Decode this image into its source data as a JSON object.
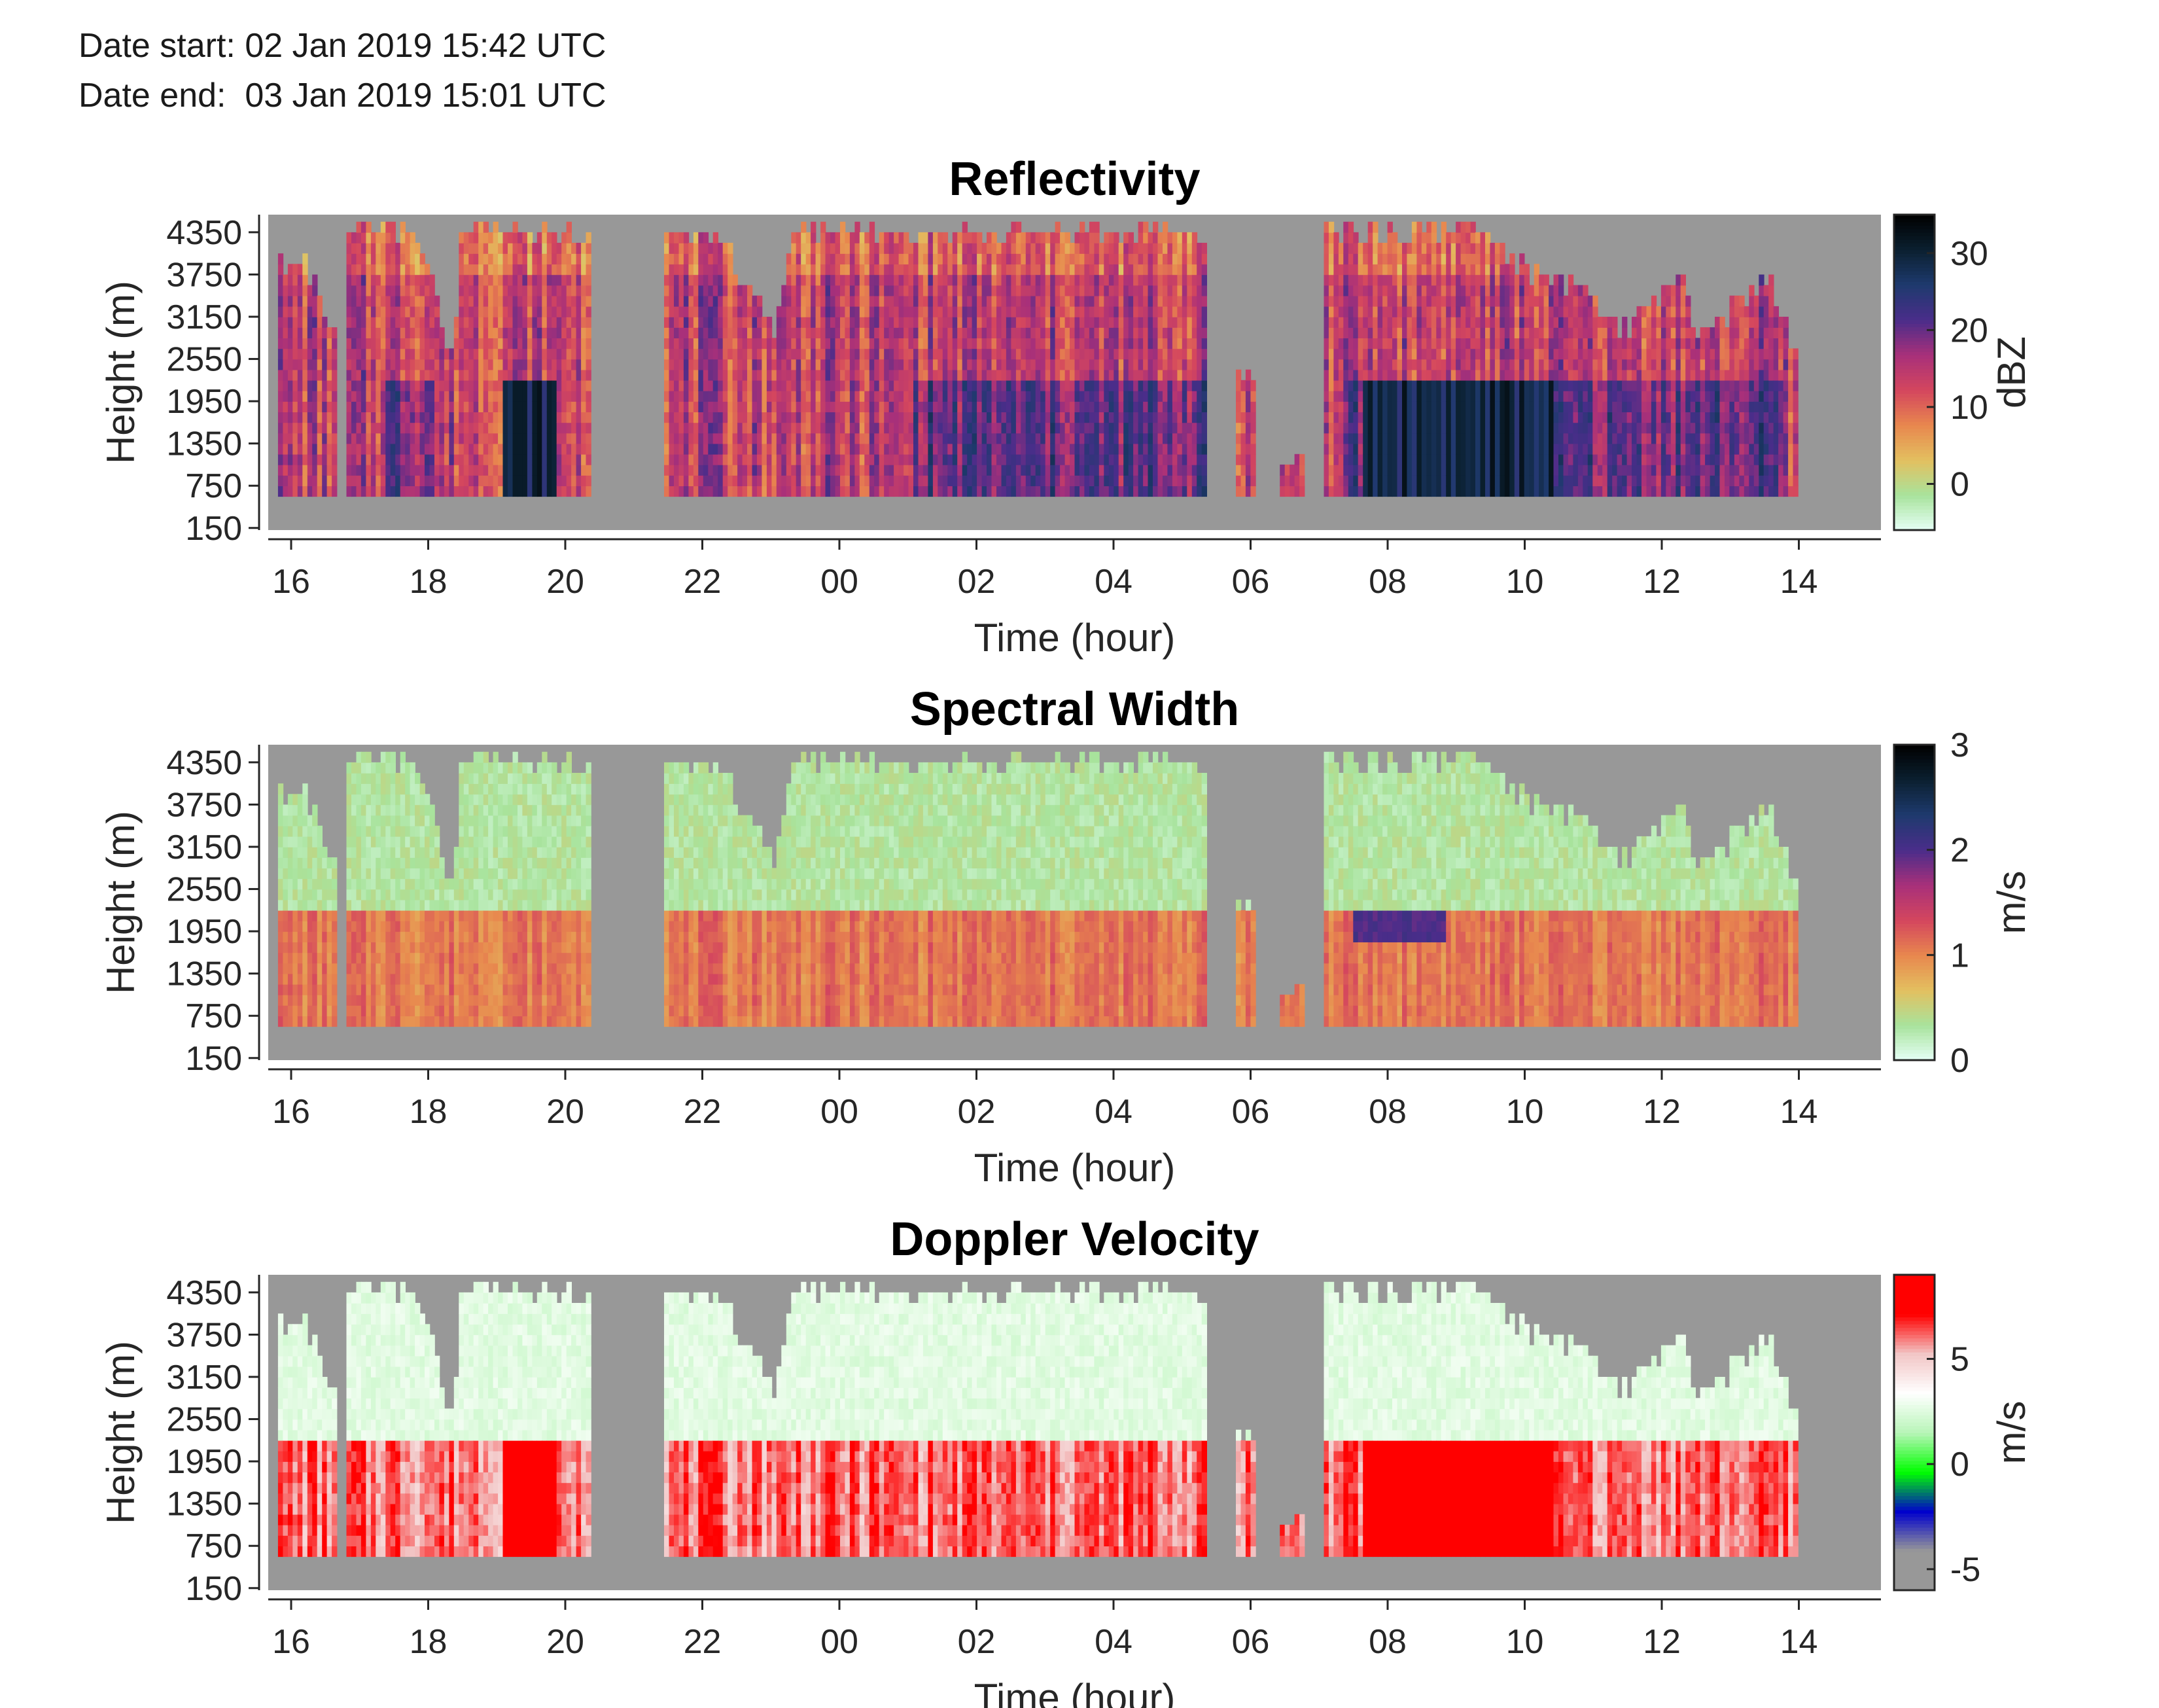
{
  "header": {
    "date_start": "Date start: 02 Jan 2019 15:42 UTC",
    "date_end": "Date end:  03 Jan 2019 15:01 UTC"
  },
  "chart_data": [
    {
      "type": "heatmap",
      "title": "Reflectivity",
      "xlabel": "Time (hour)",
      "ylabel": "Height (m)",
      "x_tick_labels": [
        "16",
        "18",
        "20",
        "22",
        "00",
        "02",
        "04",
        "06",
        "08",
        "10",
        "12",
        "14"
      ],
      "y_tick_labels": [
        "150",
        "750",
        "1350",
        "1950",
        "2550",
        "3150",
        "3750",
        "4350"
      ],
      "colorbar": {
        "label": "dBZ",
        "ticks": [
          "0",
          "10",
          "20",
          "30"
        ],
        "tick_values": [
          0,
          10,
          20,
          30
        ],
        "range": [
          -6,
          35
        ],
        "stops": [
          "#e6fff6",
          "#a8e39c",
          "#e3c060",
          "#e8874e",
          "#d4465e",
          "#a8307a",
          "#4a2d8a",
          "#1e3a6e",
          "#0b2030",
          "#000000"
        ]
      },
      "field": "reflectivity",
      "missing_color": "#989898"
    },
    {
      "type": "heatmap",
      "title": "Spectral Width",
      "xlabel": "Time (hour)",
      "ylabel": "Height (m)",
      "x_tick_labels": [
        "16",
        "18",
        "20",
        "22",
        "00",
        "02",
        "04",
        "06",
        "08",
        "10",
        "12",
        "14"
      ],
      "y_tick_labels": [
        "150",
        "750",
        "1350",
        "1950",
        "2550",
        "3150",
        "3750",
        "4350"
      ],
      "colorbar": {
        "label": "m/s",
        "ticks": [
          "0",
          "1",
          "2",
          "3"
        ],
        "tick_values": [
          0,
          1,
          2,
          3
        ],
        "range": [
          0,
          3
        ],
        "stops": [
          "#e6fff6",
          "#a8e39c",
          "#e3c060",
          "#e8874e",
          "#d4465e",
          "#a8307a",
          "#4a2d8a",
          "#1e3a6e",
          "#0b2030",
          "#000000"
        ]
      },
      "field": "spectral_width",
      "missing_color": "#989898"
    },
    {
      "type": "heatmap",
      "title": "Doppler Velocity",
      "xlabel": "Time (hour)",
      "ylabel": "Height (m)",
      "x_tick_labels": [
        "16",
        "18",
        "20",
        "22",
        "00",
        "02",
        "04",
        "06",
        "08",
        "10",
        "12",
        "14"
      ],
      "y_tick_labels": [
        "150",
        "750",
        "1350",
        "1950",
        "2550",
        "3150",
        "3750",
        "4350"
      ],
      "colorbar": {
        "label": "m/s",
        "ticks": [
          "-5",
          "0",
          "5"
        ],
        "tick_values": [
          -5,
          0,
          5
        ],
        "range": [
          -6,
          9
        ],
        "stops": [
          "#989898",
          "#989898",
          "#0000cc",
          "#00ff00",
          "#b8f5b8",
          "#ffffff",
          "#f2c6c6",
          "#ff0000",
          "#ff0000"
        ]
      },
      "field": "doppler_velocity",
      "missing_color": "#989898"
    }
  ]
}
